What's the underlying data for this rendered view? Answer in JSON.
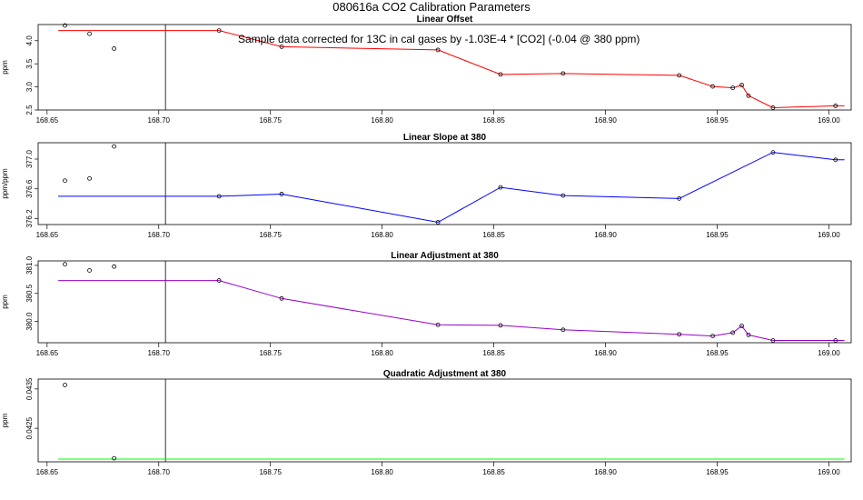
{
  "title": "080616a   CO2 Calibration Parameters",
  "chart_data": [
    {
      "type": "line",
      "title": "Linear Offset",
      "ylabel": "ppm",
      "annotation": "Sample data corrected for 13C in cal gases by -1.03E-4 * [CO2] (-0.04 @ 380 ppm)",
      "xlim": [
        168.646,
        169.01
      ],
      "ylim": [
        2.5,
        4.35
      ],
      "yticks": [
        "2.5",
        "3.0",
        "3.5",
        "4.0"
      ],
      "xticks": [
        "168.65",
        "168.70",
        "168.75",
        "168.80",
        "168.85",
        "168.90",
        "168.95",
        "169.00"
      ],
      "vline": 168.703,
      "line_color": "#ff0000",
      "line": {
        "x": [
          168.655,
          168.727,
          168.755,
          168.825,
          168.853,
          168.881,
          168.933,
          168.948,
          168.957,
          168.961,
          168.964,
          168.975,
          169.003,
          169.007
        ],
        "y": [
          4.22,
          4.22,
          3.87,
          3.8,
          3.27,
          3.29,
          3.25,
          3.01,
          2.98,
          3.04,
          2.81,
          2.55,
          2.59,
          2.59
        ]
      },
      "points": {
        "x": [
          168.658,
          168.669,
          168.68,
          168.727,
          168.755,
          168.825,
          168.853,
          168.881,
          168.933,
          168.948,
          168.957,
          168.961,
          168.964,
          168.975,
          169.003
        ],
        "y": [
          4.33,
          4.15,
          3.83,
          4.22,
          3.87,
          3.8,
          3.27,
          3.29,
          3.25,
          3.01,
          2.98,
          3.04,
          2.81,
          2.55,
          2.59
        ]
      }
    },
    {
      "type": "line",
      "title": "Linear Slope at 380",
      "ylabel": "ppm/ppm",
      "xlim": [
        168.646,
        169.01
      ],
      "ylim": [
        376.12,
        377.22
      ],
      "yticks": [
        "376.2",
        "376.6",
        "377.0"
      ],
      "xticks": [
        "168.65",
        "168.70",
        "168.75",
        "168.80",
        "168.85",
        "168.90",
        "168.95",
        "169.00"
      ],
      "vline": 168.703,
      "line_color": "#0000ff",
      "line": {
        "x": [
          168.655,
          168.727,
          168.755,
          168.825,
          168.853,
          168.881,
          168.933,
          168.975,
          169.003,
          169.007
        ],
        "y": [
          376.5,
          376.5,
          376.53,
          376.15,
          376.62,
          376.51,
          376.47,
          377.09,
          376.99,
          376.99
        ]
      },
      "points": {
        "x": [
          168.658,
          168.669,
          168.68,
          168.727,
          168.755,
          168.825,
          168.853,
          168.881,
          168.933,
          168.975,
          169.003
        ],
        "y": [
          376.71,
          376.74,
          377.17,
          376.5,
          376.53,
          376.15,
          376.62,
          376.51,
          376.47,
          377.09,
          376.99
        ]
      }
    },
    {
      "type": "line",
      "title": "Linear Adjustment at 380",
      "ylabel": "ppm",
      "xlim": [
        168.646,
        169.01
      ],
      "ylim": [
        379.62,
        381.08
      ],
      "yticks": [
        "380.0",
        "380.5",
        "381.0"
      ],
      "xticks": [
        "168.65",
        "168.70",
        "168.75",
        "168.80",
        "168.85",
        "168.90",
        "168.95",
        "169.00"
      ],
      "vline": 168.703,
      "line_color": "#9900cc",
      "line": {
        "x": [
          168.655,
          168.727,
          168.755,
          168.825,
          168.853,
          168.881,
          168.933,
          168.948,
          168.957,
          168.961,
          168.964,
          168.975,
          169.003,
          169.007
        ],
        "y": [
          380.73,
          380.73,
          380.41,
          379.94,
          379.93,
          379.85,
          379.77,
          379.74,
          379.8,
          379.92,
          379.76,
          379.66,
          379.66,
          379.66
        ]
      },
      "points": {
        "x": [
          168.658,
          168.669,
          168.68,
          168.727,
          168.755,
          168.825,
          168.853,
          168.881,
          168.933,
          168.948,
          168.957,
          168.961,
          168.964,
          168.975,
          169.003
        ],
        "y": [
          381.02,
          380.91,
          380.98,
          380.73,
          380.41,
          379.94,
          379.93,
          379.85,
          379.77,
          379.74,
          379.8,
          379.92,
          379.76,
          379.66,
          379.66
        ]
      }
    },
    {
      "type": "line",
      "title": "Quadratic Adjustment at 380",
      "ylabel": "ppm",
      "xlim": [
        168.646,
        169.01
      ],
      "ylim": [
        0.04165,
        0.04375
      ],
      "yticks": [
        "0.0425",
        "0.0435"
      ],
      "xticks": [
        "168.65",
        "168.70",
        "168.75",
        "168.80",
        "168.85",
        "168.90",
        "168.95",
        "169.00"
      ],
      "vline": 168.703,
      "line_color": "#00ff00",
      "line": {
        "x": [
          168.655,
          169.007
        ],
        "y": [
          0.04172,
          0.04172
        ]
      },
      "points": {
        "x": [
          168.658,
          168.68
        ],
        "y": [
          0.0436,
          0.04174
        ]
      }
    }
  ]
}
